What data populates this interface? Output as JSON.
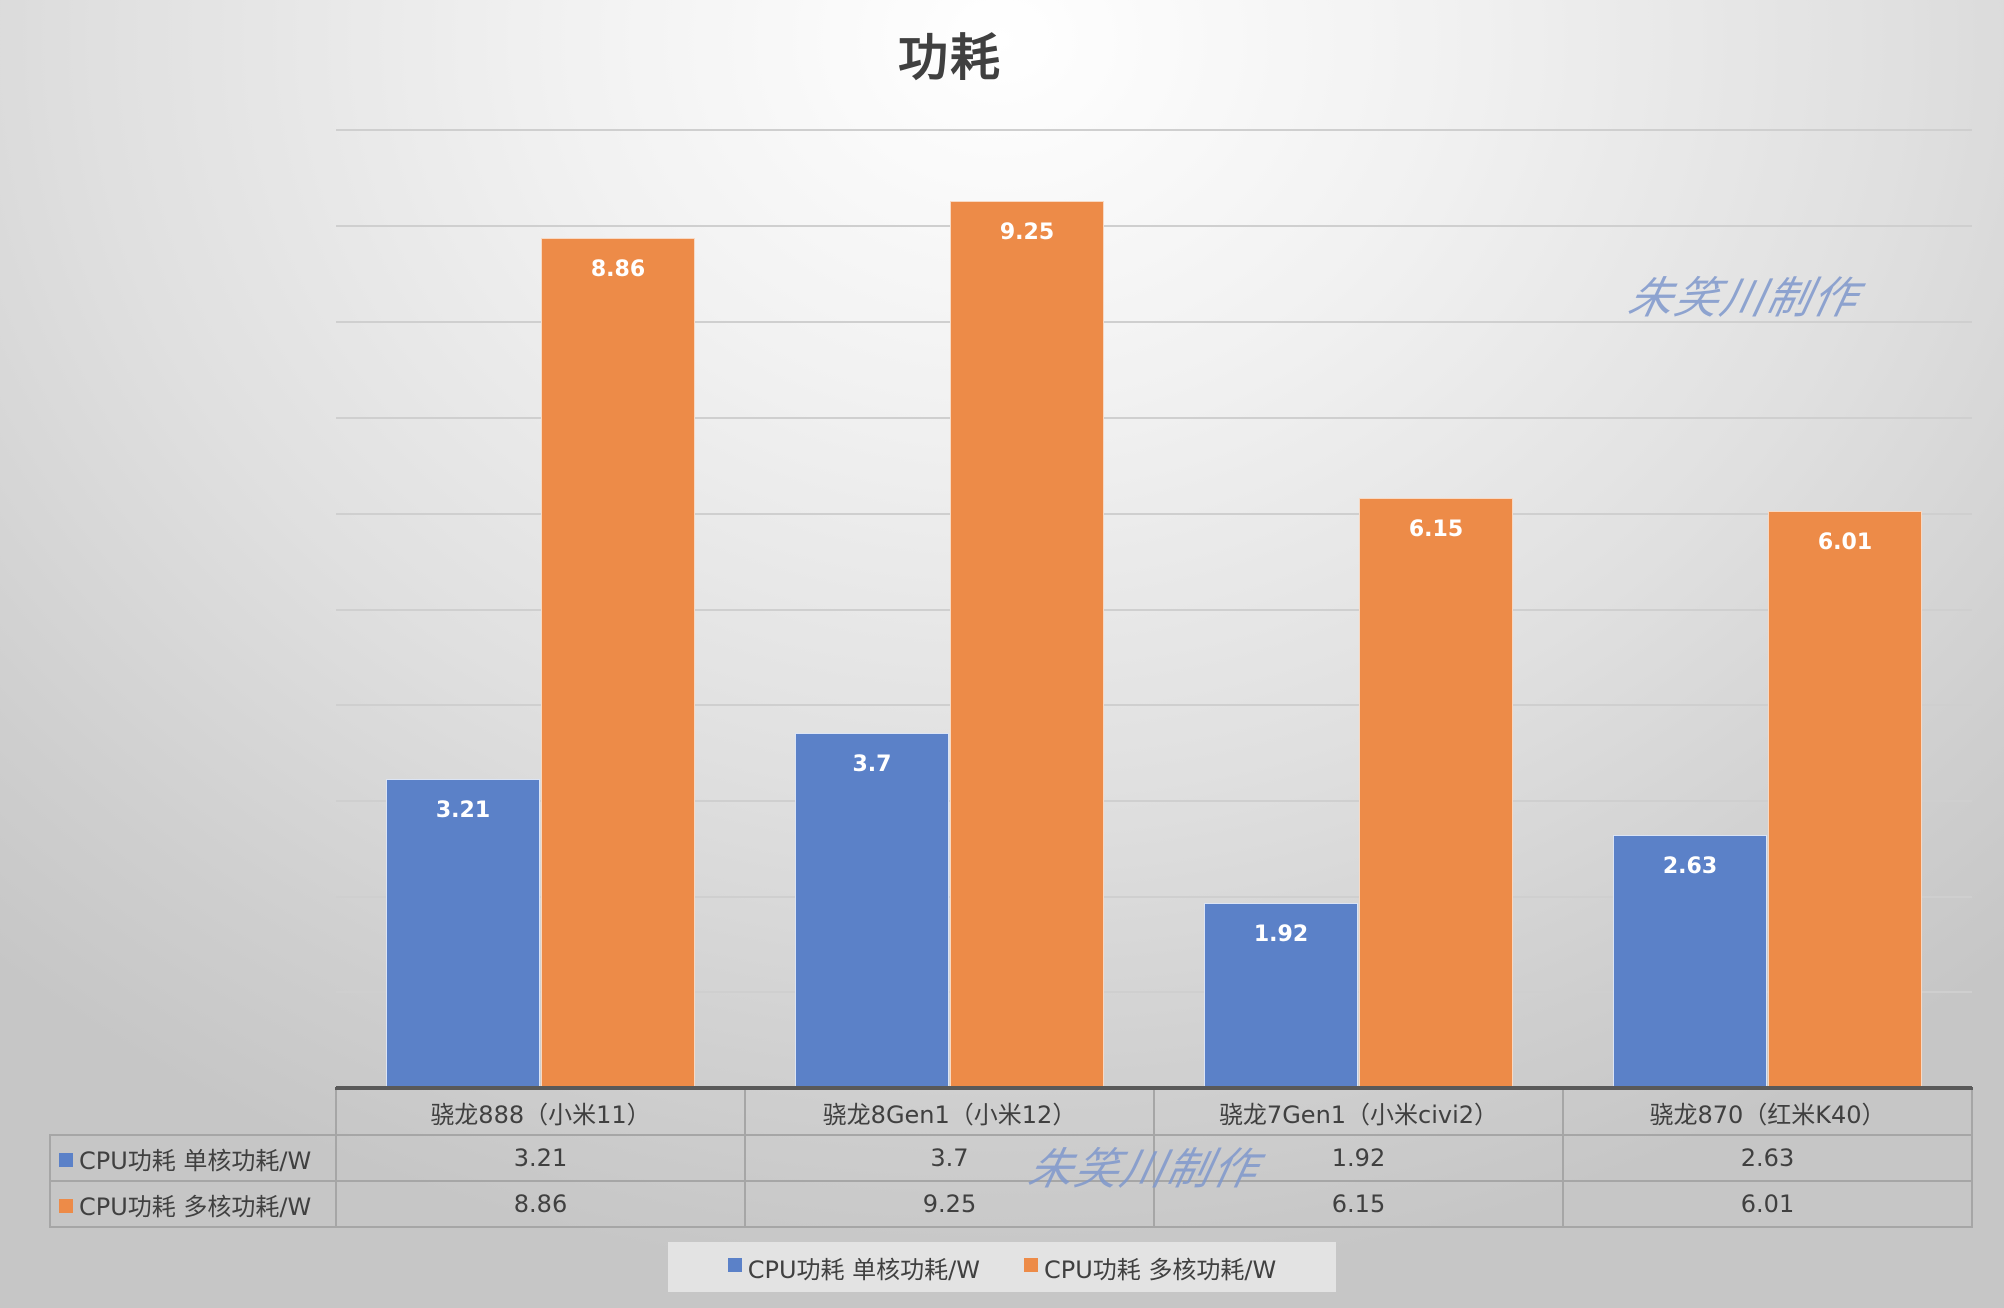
{
  "chart_data": {
    "type": "bar",
    "title": "功耗",
    "xlabel": "",
    "ylabel": "",
    "ylim": [
      0,
      10
    ],
    "grid": true,
    "y_axis_labels_visible": false,
    "legend_position": "bottom",
    "data_table": true,
    "categories": [
      "骁龙888（小米11）",
      "骁龙8Gen1（小米12）",
      "骁龙7Gen1（小米civi2）",
      "骁龙870（红米K40）"
    ],
    "series": [
      {
        "name": "CPU功耗 单核功耗/W",
        "color": "#5b81c8",
        "values": [
          3.21,
          3.7,
          1.92,
          2.63
        ],
        "labels": [
          "3.21",
          "3.7",
          "1.92",
          "2.63"
        ]
      },
      {
        "name": "CPU功耗 多核功耗/W",
        "color": "#ed8b48",
        "values": [
          8.86,
          9.25,
          6.15,
          6.01
        ],
        "labels": [
          "8.86",
          "9.25",
          "6.15",
          "6.01"
        ]
      }
    ]
  },
  "watermarks": [
    "朱笑川制作",
    "朱笑川制作"
  ],
  "legend": {
    "items": [
      {
        "label": "CPU功耗 单核功耗/W",
        "color": "#5b81c8"
      },
      {
        "label": "CPU功耗 多核功耗/W",
        "color": "#ed8b48"
      }
    ]
  }
}
